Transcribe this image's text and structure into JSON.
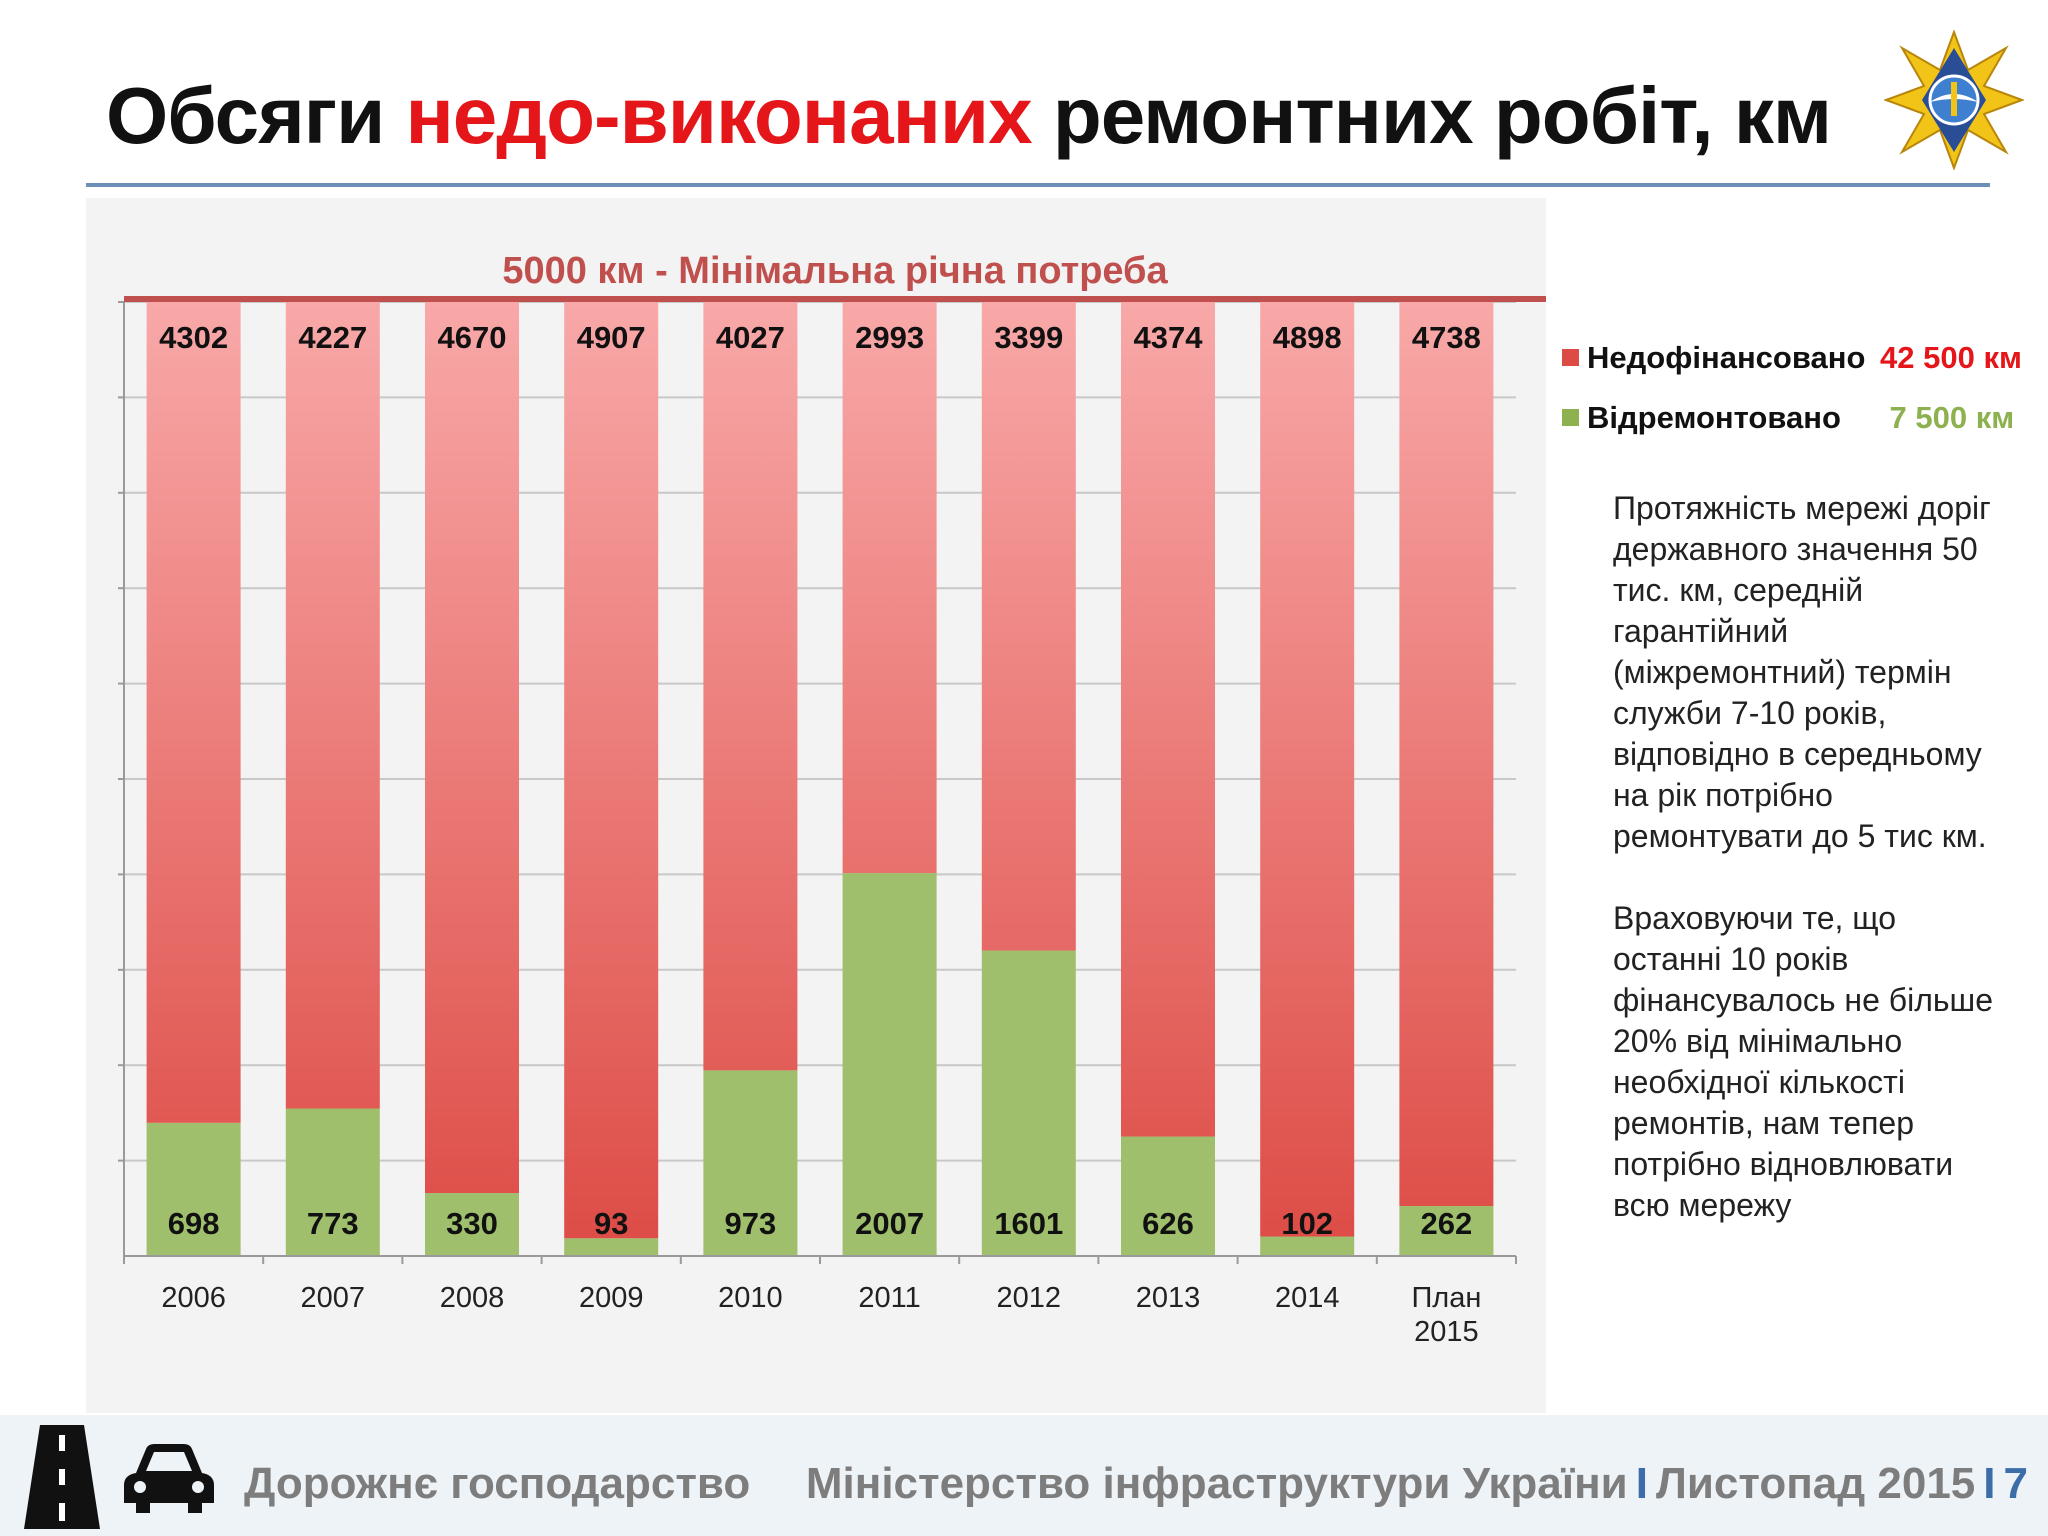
{
  "slide": {
    "title_part1": "Обсяги ",
    "title_part2": "недо-виконаних",
    "title_part3": " ремонтних робіт, км",
    "page_number": "7"
  },
  "colors": {
    "accent_red": "#e5161a",
    "underfunded_top": "#f8a8a8",
    "underfunded_bottom": "#dd4b45",
    "repaired": "#9fbf6c",
    "legend_green": "#8db14f",
    "need_line": "#c0504d",
    "rule_blue": "#6c8fb8",
    "footer_blue": "#3b6ea8"
  },
  "chart_data": {
    "type": "bar",
    "stacked": true,
    "annotation": "5000 км - Мінімальна річна потреба",
    "categories": [
      "2006",
      "2007",
      "2008",
      "2009",
      "2010",
      "2011",
      "2012",
      "2013",
      "2014",
      "План 2015"
    ],
    "series": [
      {
        "name": "Відремонтовано",
        "values": [
          698,
          773,
          330,
          93,
          973,
          2007,
          1601,
          626,
          102,
          262
        ]
      },
      {
        "name": "Недофінансовано",
        "values": [
          4302,
          4227,
          4670,
          4907,
          4027,
          2993,
          3399,
          4374,
          4898,
          4738
        ]
      }
    ],
    "ylim": [
      0,
      5000
    ],
    "grid": true,
    "legend_position": "right"
  },
  "legend": {
    "underfunded_label": "Недофінансовано",
    "underfunded_total": "42 500 км",
    "repaired_label": "Відремонтовано",
    "repaired_total": "7 500 км"
  },
  "side_text": {
    "p1": "Протяжність мережі доріг державного значення 50 тис. км, середній гарантійний (міжремонтний) термін служби 7-10 років, відповідно в середньому на рік потрібно ремонтувати до 5 тис км.",
    "p2": "Враховуючи те, що останні 10 років фінансувалось не більше 20% від мінімально необхідної кількості ремонтів, нам тепер потрібно відновлювати всю мережу"
  },
  "footer": {
    "left": "Дорожнє господарство",
    "right_ministry": "Міністерство інфраструктури України",
    "right_date": "Листопад 2015",
    "separator": "I"
  },
  "icons": [
    "emblem-icon",
    "road-icon",
    "car-icon"
  ]
}
